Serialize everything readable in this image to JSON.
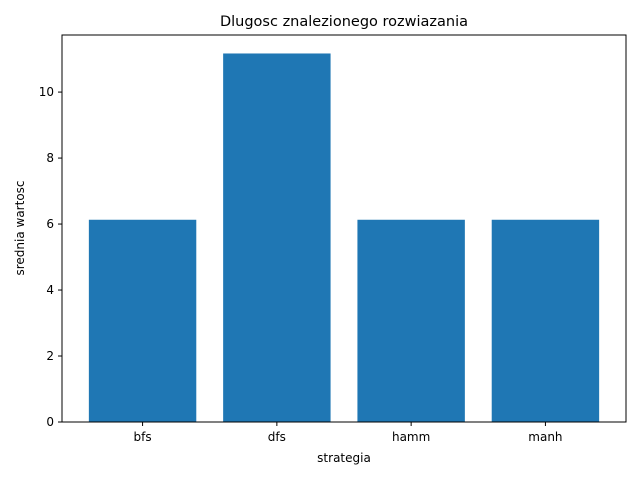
{
  "chart_data": {
    "type": "bar",
    "title": "Dlugosc znalezionego rozwiazania",
    "xlabel": "strategia",
    "ylabel": "srednia wartosc",
    "categories": [
      "bfs",
      "dfs",
      "hamm",
      "manh"
    ],
    "values": [
      6.13,
      11.17,
      6.13,
      6.13
    ],
    "ylim": [
      0,
      11.73
    ],
    "yticks": [
      0,
      2,
      4,
      6,
      8,
      10
    ],
    "bar_color": "#1f77b4",
    "grid": false,
    "legend": "none"
  }
}
